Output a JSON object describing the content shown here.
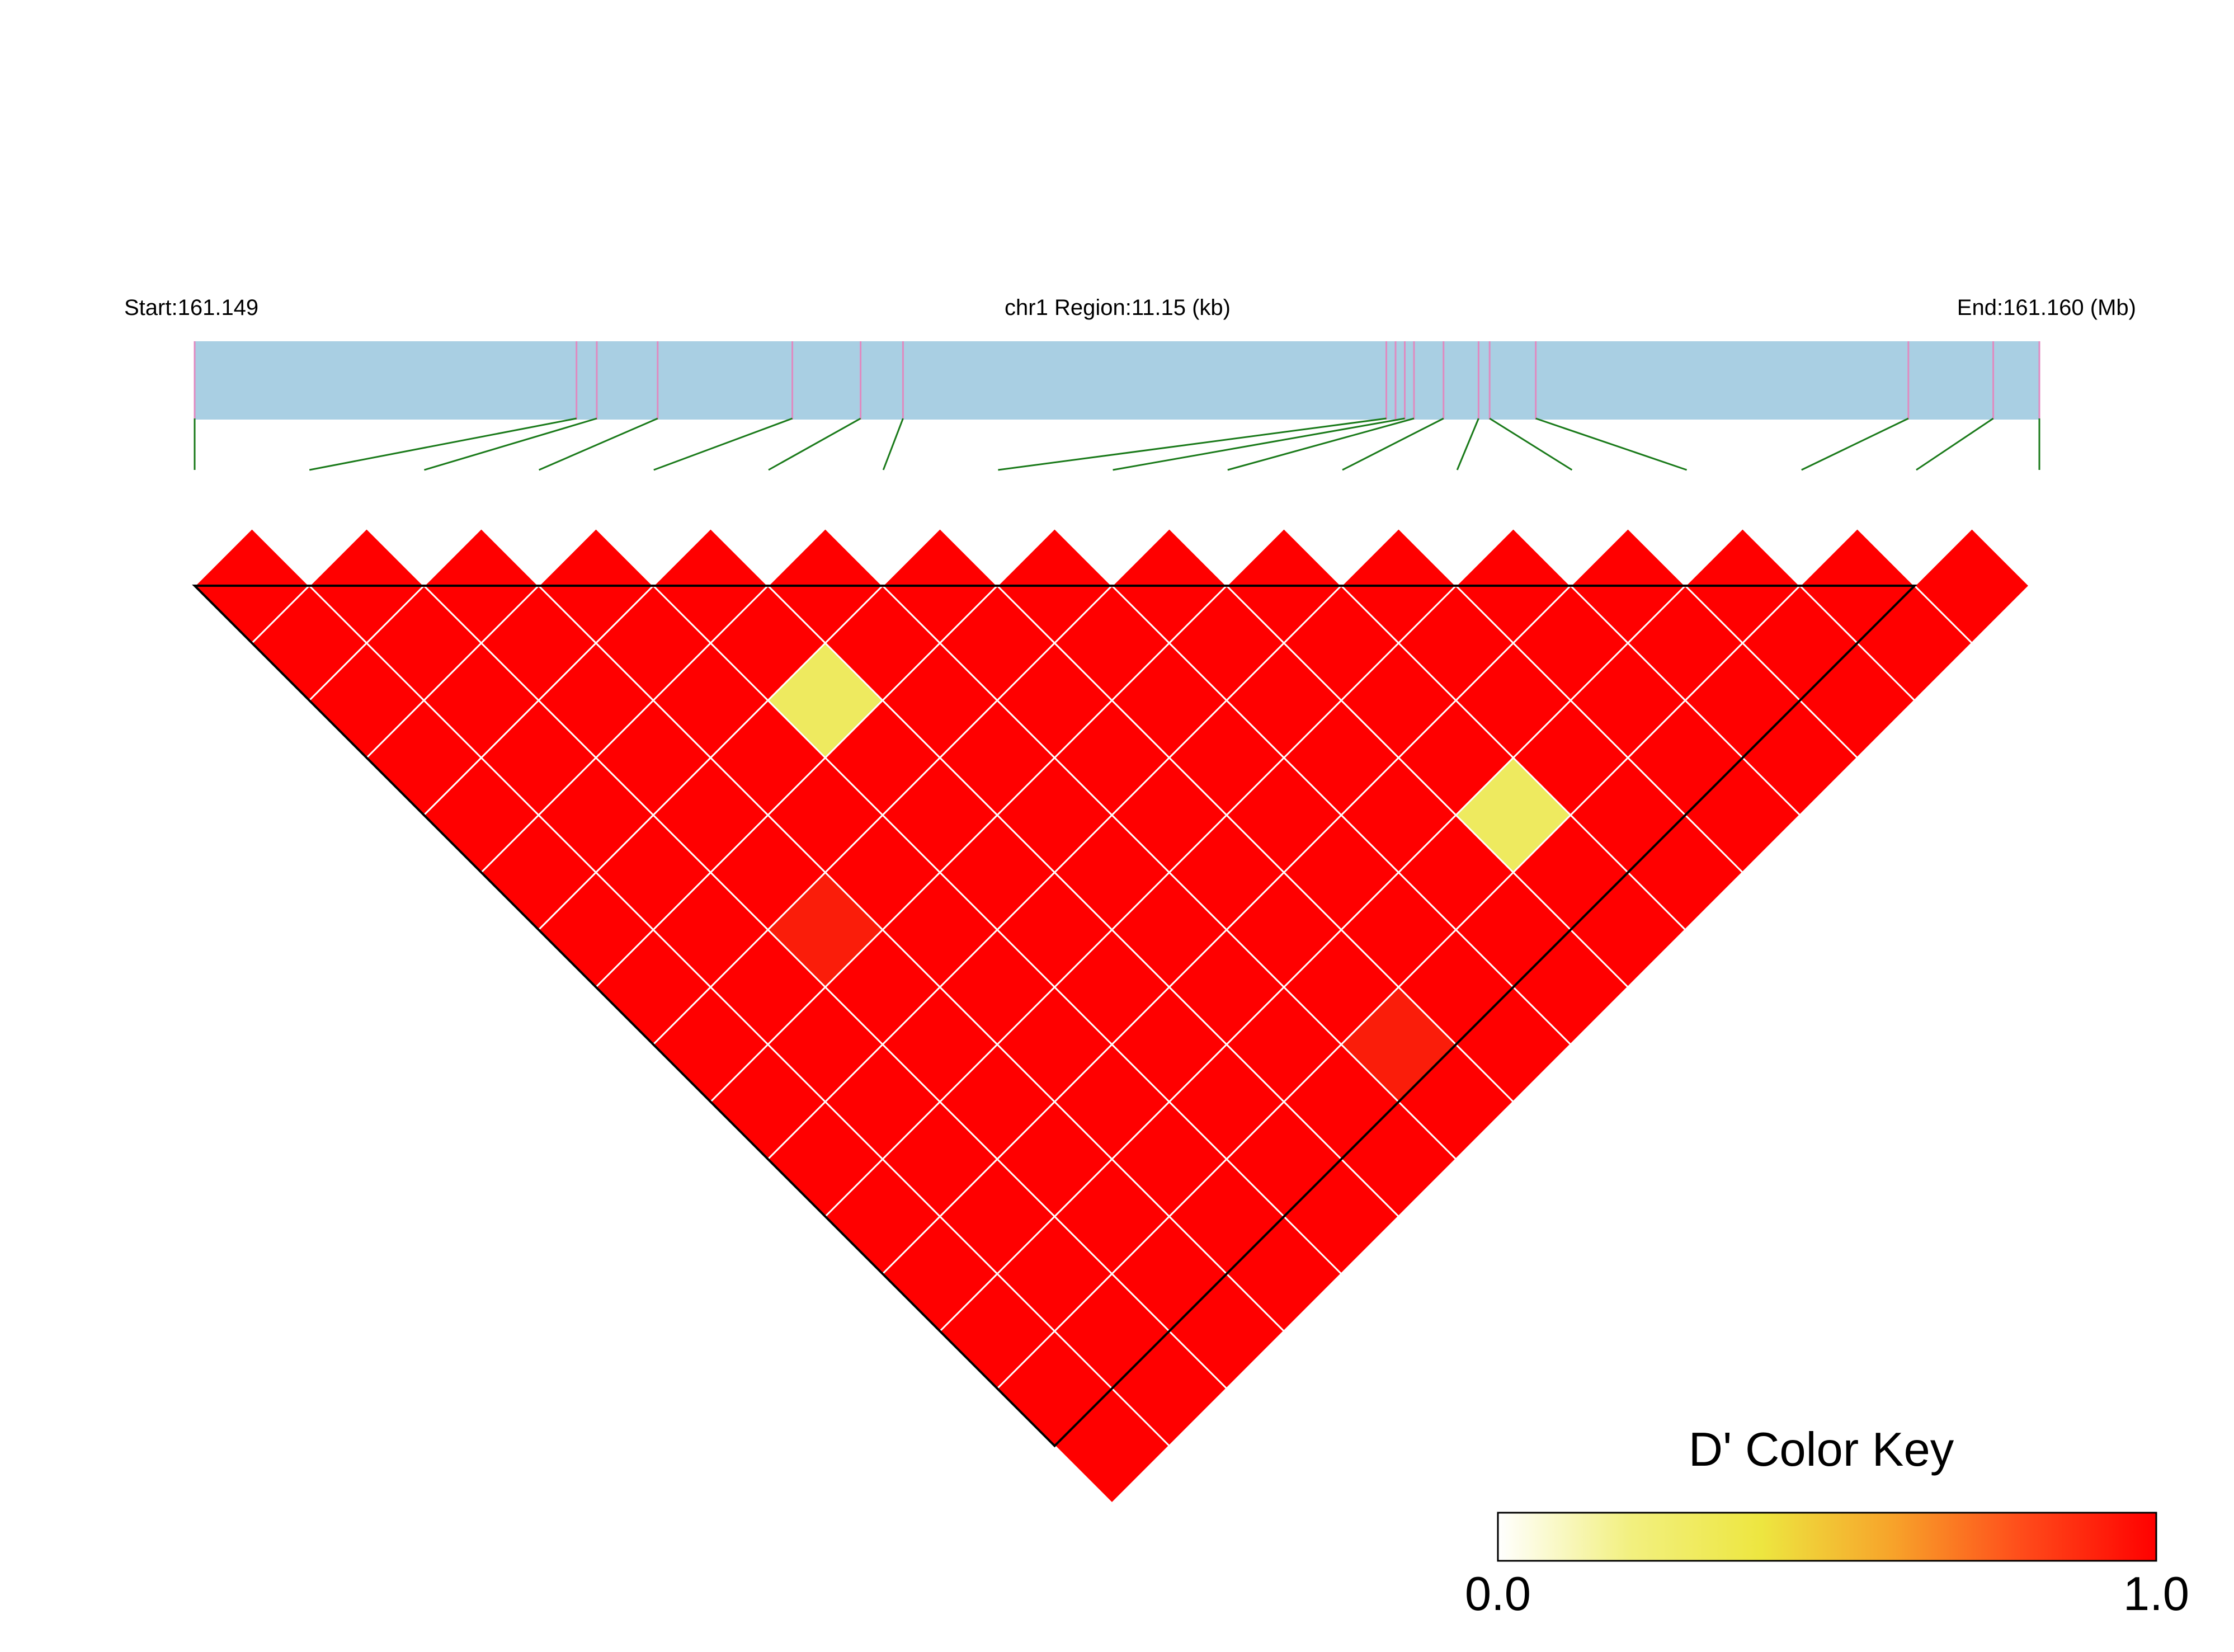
{
  "header": {
    "start_label": "Start:161.149",
    "region_label": "chr1 Region:11.15 (kb)",
    "end_label": "End:161.160 (Mb)"
  },
  "colors": {
    "gene_track": "#a9cfe3",
    "snp_marker": "#e08ac0",
    "connector": "#1a7a1a",
    "high_ld": "#ff0000",
    "mid_ld": "#eeea5f",
    "near_high_ld": "#fa1d0a",
    "cell_border": "#ffffff",
    "block_outline": "#000000"
  },
  "color_key": {
    "title": "D' Color Key",
    "min_label": "0.0",
    "max_label": "1.0",
    "stops": [
      "#ffffff",
      "#f2f080",
      "#ede640",
      "#f7a32a",
      "#ff4a1a",
      "#ff0000"
    ]
  },
  "chart_data": {
    "type": "heatmap",
    "measure": "D'",
    "chromosome": "chr1",
    "region_kb": 11.15,
    "start_mb": 161.149,
    "end_mb": 161.16,
    "snp_count": 16,
    "snp_positions_frac": [
      0,
      0.207,
      0.218,
      0.251,
      0.324,
      0.361,
      0.384,
      0.646,
      0.651,
      0.656,
      0.661,
      0.677,
      0.696,
      0.702,
      0.727,
      0.929,
      0.975,
      1.0
    ],
    "default_d_prime": 1.0,
    "exceptions": [
      {
        "i": 4,
        "j": 7,
        "d_prime": 0.5
      },
      {
        "i": 9,
        "j": 14,
        "d_prime": 0.5
      },
      {
        "i": 2,
        "j": 9,
        "d_prime": 0.95
      },
      {
        "i": 6,
        "j": 15,
        "d_prime": 0.95
      }
    ],
    "blocks": [
      {
        "from": 0,
        "to": 15
      }
    ]
  }
}
